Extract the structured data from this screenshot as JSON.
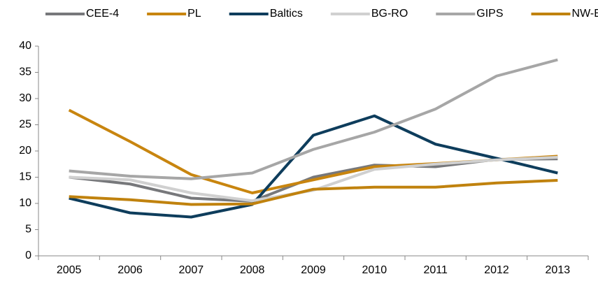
{
  "chart_data": {
    "type": "line",
    "categories": [
      "2005",
      "2006",
      "2007",
      "2008",
      "2009",
      "2010",
      "2011",
      "2012",
      "2013"
    ],
    "series": [
      {
        "name": "CEE-4",
        "color": "#77787b",
        "values": [
          15,
          13.7,
          11,
          10.4,
          15,
          17.3,
          17,
          18.4,
          18.5
        ]
      },
      {
        "name": "PL",
        "color": "#c8850f",
        "values": [
          27.8,
          21.8,
          15.5,
          12,
          14.5,
          17,
          17.6,
          18.3,
          19
        ]
      },
      {
        "name": "Baltics",
        "color": "#0e3d5c",
        "values": [
          11,
          8.2,
          7.4,
          9.8,
          23,
          26.7,
          21.3,
          18.6,
          15.8
        ]
      },
      {
        "name": "BG-RO",
        "color": "#d0d0d0",
        "values": [
          15,
          14.5,
          12,
          10.5,
          12.5,
          16.5,
          17.5,
          18.3,
          18.8
        ]
      },
      {
        "name": "GIPS",
        "color": "#a6a6a6",
        "values": [
          16.2,
          15.2,
          14.7,
          15.8,
          20.3,
          23.6,
          28,
          34.3,
          37.4
        ]
      },
      {
        "name": "NW-EU",
        "color": "#c0820e",
        "values": [
          11.3,
          10.7,
          9.8,
          9.9,
          12.7,
          13.1,
          13.1,
          13.9,
          14.4
        ]
      }
    ],
    "ylim": [
      0,
      40
    ],
    "yticks": [
      0,
      5,
      10,
      15,
      20,
      25,
      30,
      35,
      40
    ],
    "grid": false,
    "legend": "top"
  }
}
